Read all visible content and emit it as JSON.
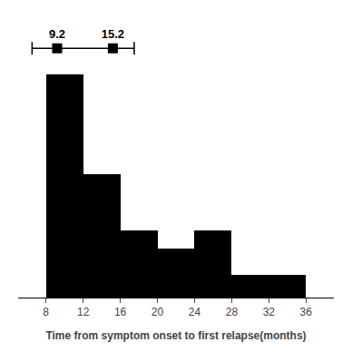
{
  "chart_data": {
    "type": "histogram",
    "bins": [
      8,
      12,
      16,
      20,
      24,
      28,
      32,
      36
    ],
    "values": [
      100,
      55,
      30,
      22,
      30,
      10,
      10
    ],
    "color": "#000000",
    "xlabel": "Time from symptom onset to first relapse(months)",
    "xlim": [
      5,
      39
    ],
    "xticks": [
      8,
      12,
      16,
      20,
      24,
      28,
      32,
      36
    ],
    "ylim": [
      0,
      100
    ],
    "tick_labels": "x",
    "grid": false,
    "box": {
      "whisker_low": 6.5,
      "whisker_high": 17.5,
      "median": 9.2,
      "q3": 15.2,
      "data_labels": true
    }
  }
}
